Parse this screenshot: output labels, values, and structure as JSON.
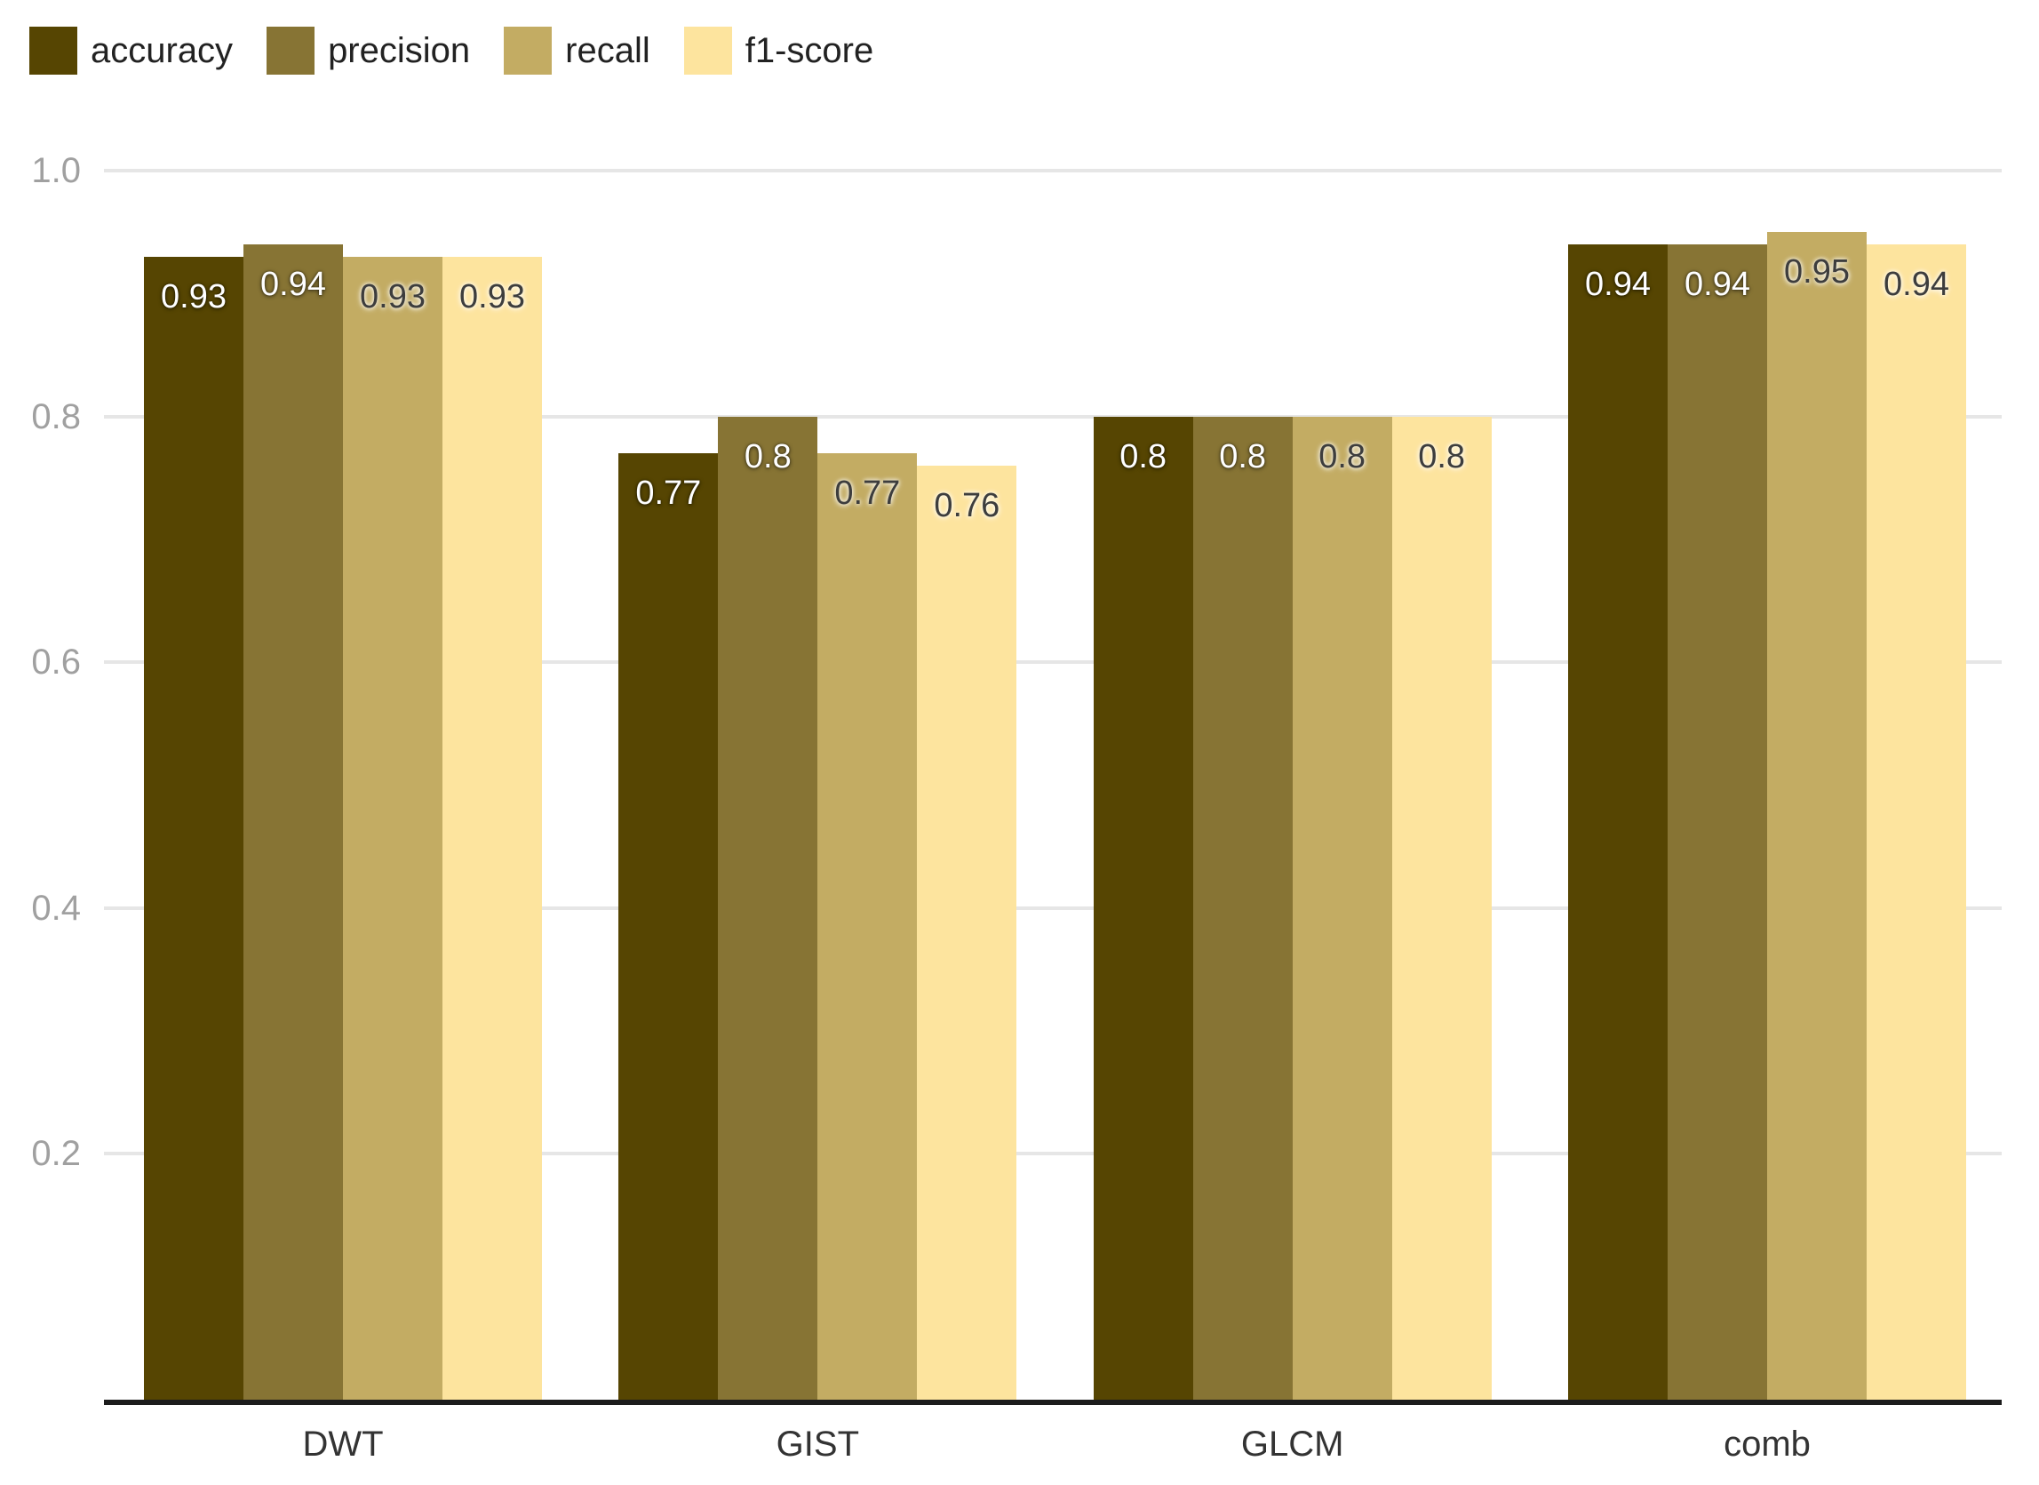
{
  "chart_data": {
    "type": "bar",
    "title": "",
    "xlabel": "",
    "ylabel": "",
    "ylim": [
      0,
      1.0
    ],
    "grid": true,
    "legend_position": "top-left",
    "categories": [
      "DWT",
      "GIST",
      "GLCM",
      "comb"
    ],
    "series": [
      {
        "name": "accuracy",
        "color": "#564502",
        "values": [
          0.93,
          0.77,
          0.8,
          0.94
        ],
        "value_label_color": "#ffffff"
      },
      {
        "name": "precision",
        "color": "#877434",
        "values": [
          0.94,
          0.8,
          0.8,
          0.94
        ],
        "value_label_color": "#ffffff"
      },
      {
        "name": "recall",
        "color": "#c3ac63",
        "values": [
          0.93,
          0.77,
          0.8,
          0.95
        ],
        "value_label_color": "#3d3d3d"
      },
      {
        "name": "f1-score",
        "color": "#fde49e",
        "values": [
          0.93,
          0.76,
          0.8,
          0.94
        ],
        "value_label_color": "#3d3d3d"
      }
    ],
    "value_labels": [
      [
        "0.93",
        "0.77",
        "0.8",
        "0.94"
      ],
      [
        "0.94",
        "0.8",
        "0.8",
        "0.94"
      ],
      [
        "0.93",
        "0.77",
        "0.8",
        "0.95"
      ],
      [
        "0.93",
        "0.76",
        "0.8",
        "0.94"
      ]
    ],
    "y_ticks": [
      {
        "value": 1.0,
        "label": "1.0"
      },
      {
        "value": 0.8,
        "label": "0.8"
      },
      {
        "value": 0.6,
        "label": "0.6"
      },
      {
        "value": 0.4,
        "label": "0.4"
      },
      {
        "value": 0.2,
        "label": "0.2"
      }
    ]
  },
  "colors": {
    "background": "#ffffff",
    "gridline": "#e6e6e6",
    "axis_line": "#1c1c1c",
    "ytick_text": "#a0a0a0",
    "xlabel_text": "#333333",
    "legend_text": "#222222"
  }
}
